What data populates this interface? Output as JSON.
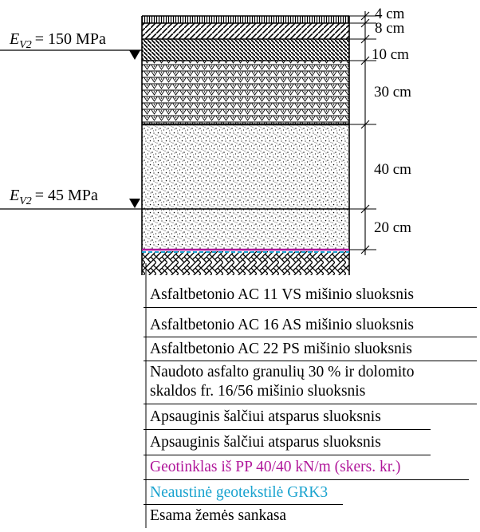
{
  "thickness_labels": [
    "4 cm",
    "8 cm",
    "10 cm",
    "30 cm",
    "40 cm",
    "20 cm"
  ],
  "modulus_markers": [
    {
      "symbol": "E",
      "subscript": "V2",
      "value": "= 150 MPa"
    },
    {
      "symbol": "E",
      "subscript": "V2",
      "value": "= 45 MPa"
    }
  ],
  "layers": [
    {
      "text": "Asfaltbetonio AC 11 VS mišinio sluoksnis",
      "color": "#000000"
    },
    {
      "text": "Asfaltbetonio AC 16 AS mišinio sluoksnis",
      "color": "#000000"
    },
    {
      "text": "Asfaltbetonio AC 22 PS mišinio sluoksnis",
      "color": "#000000"
    },
    {
      "text": "Naudoto asfalto granulių 30 % ir dolomito",
      "text2": "skaldos fr. 16/56 mišinio sluoksnis",
      "color": "#000000"
    },
    {
      "text": "Apsauginis šalčiui atsparus sluoksnis",
      "color": "#000000"
    },
    {
      "text": "Apsauginis šalčiui atsparus sluoksnis",
      "color": "#000000"
    },
    {
      "text": "Geotinklas iš PP 40/40 kN/m (skers. kr.)",
      "color": "#b0179a"
    },
    {
      "text": "Neaustinė geotekstilė GRK3",
      "color": "#1aa3cf"
    },
    {
      "text": "Esama žemės sankasa",
      "color": "#000000"
    }
  ]
}
